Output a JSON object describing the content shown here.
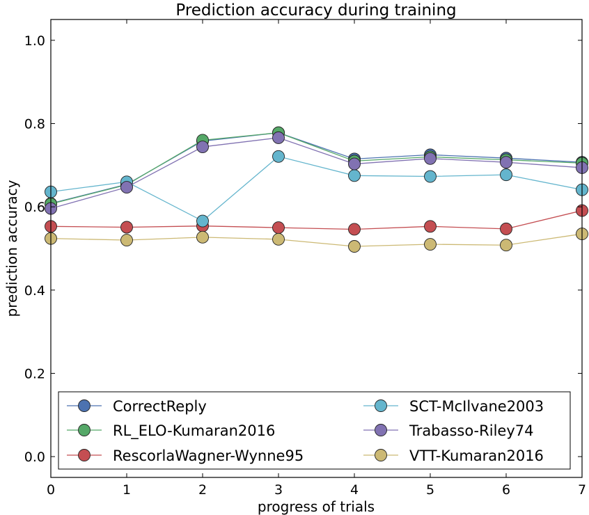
{
  "chart_data": {
    "type": "line",
    "title": "Prediction accuracy during training",
    "xlabel": "progress of trials",
    "ylabel": "prediction accuracy",
    "xlim": [
      0,
      7
    ],
    "ylim": [
      -0.05,
      1.05
    ],
    "xticks": [
      0,
      1,
      2,
      3,
      4,
      5,
      6,
      7
    ],
    "xtick_labels": [
      "0",
      "1",
      "2",
      "3",
      "4",
      "5",
      "6",
      "7"
    ],
    "yticks": [
      0.0,
      0.2,
      0.4,
      0.6,
      0.8,
      1.0
    ],
    "ytick_labels": [
      "0.0",
      "0.2",
      "0.4",
      "0.6",
      "0.8",
      "1.0"
    ],
    "grid": false,
    "legend_position": "bottom",
    "x": [
      0,
      1,
      2,
      3,
      4,
      5,
      6,
      7
    ],
    "series": [
      {
        "name": "CorrectReply",
        "color": "#4c72b0",
        "values": [
          0.608,
          0.654,
          0.758,
          0.778,
          0.715,
          0.725,
          0.717,
          0.707
        ]
      },
      {
        "name": "RL_ELO-Kumaran2016",
        "color": "#55a868",
        "values": [
          0.607,
          0.653,
          0.76,
          0.778,
          0.71,
          0.72,
          0.713,
          0.705
        ]
      },
      {
        "name": "RescorlaWagner-Wynne95",
        "color": "#c44e52",
        "values": [
          0.553,
          0.551,
          0.554,
          0.55,
          0.546,
          0.553,
          0.547,
          0.591
        ]
      },
      {
        "name": "SCT-McIlvane2003",
        "color": "#64b5cd",
        "values": [
          0.636,
          0.66,
          0.566,
          0.721,
          0.675,
          0.673,
          0.677,
          0.641
        ]
      },
      {
        "name": "Trabasso-Riley74",
        "color": "#8172b2",
        "values": [
          0.596,
          0.647,
          0.744,
          0.766,
          0.703,
          0.716,
          0.707,
          0.694
        ]
      },
      {
        "name": "VTT-Kumaran2016",
        "color": "#ccb974",
        "values": [
          0.524,
          0.52,
          0.527,
          0.522,
          0.505,
          0.51,
          0.508,
          0.535
        ]
      }
    ]
  }
}
